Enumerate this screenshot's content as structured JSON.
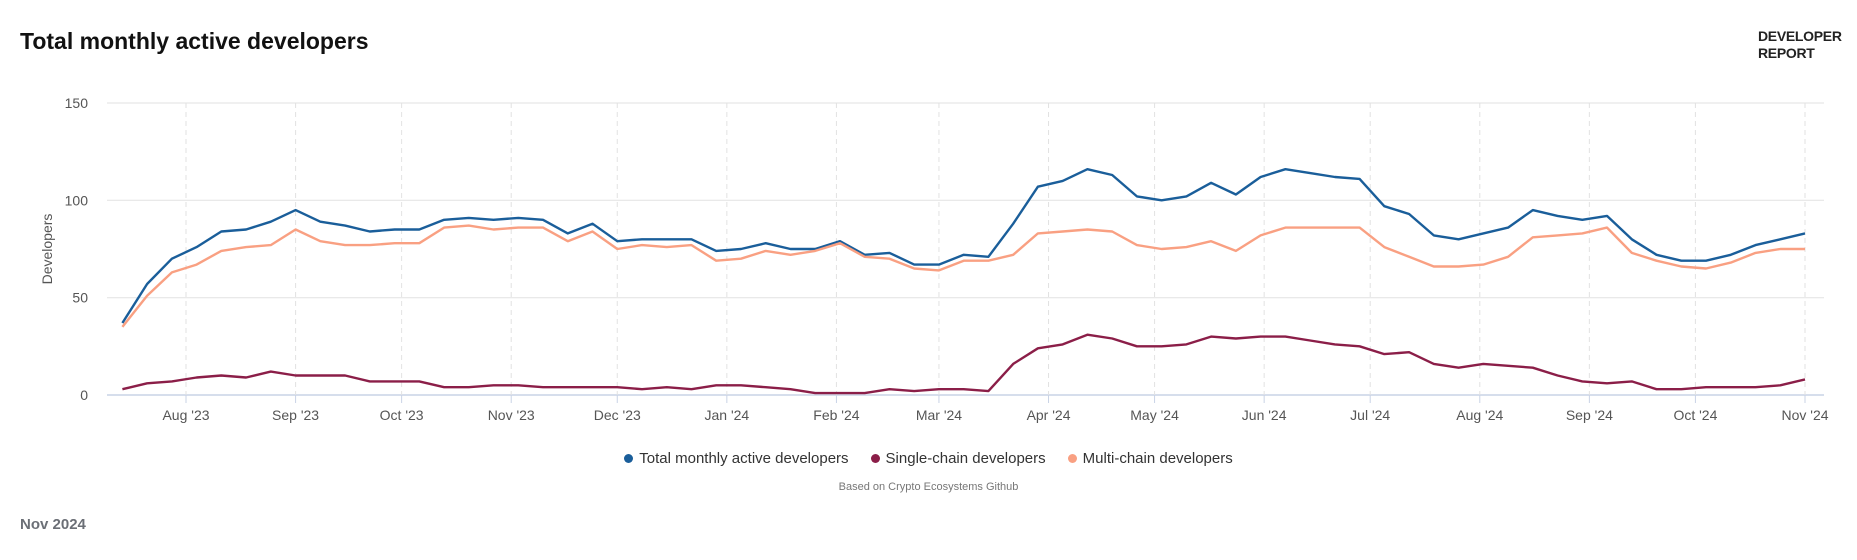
{
  "header": {
    "title": "Total monthly active developers",
    "brand_line1": "DEVELOPER",
    "brand_line2": "REPORT"
  },
  "footer": {
    "source": "Based on Crypto Ecosystems Github",
    "date": "Nov 2024"
  },
  "chart_data": {
    "type": "line",
    "title": "Total monthly active developers",
    "xlabel": "",
    "ylabel": "Developers",
    "ylim": [
      0,
      150
    ],
    "yticks": [
      0,
      50,
      100,
      150
    ],
    "xticks": [
      {
        "date": "2023-08-01",
        "label": "Aug '23"
      },
      {
        "date": "2023-09-01",
        "label": "Sep '23"
      },
      {
        "date": "2023-10-01",
        "label": "Oct '23"
      },
      {
        "date": "2023-11-01",
        "label": "Nov '23"
      },
      {
        "date": "2023-12-01",
        "label": "Dec '23"
      },
      {
        "date": "2024-01-01",
        "label": "Jan '24"
      },
      {
        "date": "2024-02-01",
        "label": "Feb '24"
      },
      {
        "date": "2024-03-01",
        "label": "Mar '24"
      },
      {
        "date": "2024-04-01",
        "label": "Apr '24"
      },
      {
        "date": "2024-05-01",
        "label": "May '24"
      },
      {
        "date": "2024-06-01",
        "label": "Jun '24"
      },
      {
        "date": "2024-07-01",
        "label": "Jul '24"
      },
      {
        "date": "2024-08-01",
        "label": "Aug '24"
      },
      {
        "date": "2024-09-01",
        "label": "Sep '24"
      },
      {
        "date": "2024-10-01",
        "label": "Oct '24"
      },
      {
        "date": "2024-11-01",
        "label": "Nov '24"
      }
    ],
    "grid": true,
    "legend_position": "bottom-center",
    "x": [
      "2023-07-14",
      "2023-07-21",
      "2023-07-28",
      "2023-08-04",
      "2023-08-11",
      "2023-08-18",
      "2023-08-25",
      "2023-09-01",
      "2023-09-08",
      "2023-09-15",
      "2023-09-22",
      "2023-09-29",
      "2023-10-06",
      "2023-10-13",
      "2023-10-20",
      "2023-10-27",
      "2023-11-03",
      "2023-11-10",
      "2023-11-17",
      "2023-11-24",
      "2023-12-01",
      "2023-12-08",
      "2023-12-15",
      "2023-12-22",
      "2023-12-29",
      "2024-01-05",
      "2024-01-12",
      "2024-01-19",
      "2024-01-26",
      "2024-02-02",
      "2024-02-09",
      "2024-02-16",
      "2024-02-23",
      "2024-03-01",
      "2024-03-08",
      "2024-03-15",
      "2024-03-22",
      "2024-03-29",
      "2024-04-05",
      "2024-04-12",
      "2024-04-19",
      "2024-04-26",
      "2024-05-03",
      "2024-05-10",
      "2024-05-17",
      "2024-05-24",
      "2024-05-31",
      "2024-06-07",
      "2024-06-14",
      "2024-06-21",
      "2024-06-28",
      "2024-07-05",
      "2024-07-12",
      "2024-07-19",
      "2024-07-26",
      "2024-08-02",
      "2024-08-09",
      "2024-08-16",
      "2024-08-23",
      "2024-08-30",
      "2024-09-06",
      "2024-09-13",
      "2024-09-20",
      "2024-09-27",
      "2024-10-04",
      "2024-10-11",
      "2024-10-18",
      "2024-10-25",
      "2024-11-01"
    ],
    "series": [
      {
        "name": "Total monthly active developers",
        "color": "#1a5e9a",
        "values": [
          37,
          57,
          70,
          76,
          84,
          85,
          89,
          95,
          89,
          87,
          84,
          85,
          85,
          90,
          91,
          90,
          91,
          90,
          83,
          88,
          79,
          80,
          80,
          80,
          74,
          75,
          78,
          75,
          75,
          79,
          72,
          73,
          67,
          67,
          72,
          71,
          88,
          107,
          110,
          116,
          113,
          102,
          100,
          102,
          109,
          103,
          112,
          116,
          114,
          112,
          111,
          97,
          93,
          82,
          80,
          83,
          86,
          95,
          92,
          90,
          92,
          80,
          72,
          69,
          69,
          72,
          77,
          80,
          83
        ]
      },
      {
        "name": "Single-chain developers",
        "color": "#8b1e48",
        "values": [
          3,
          6,
          7,
          9,
          10,
          9,
          12,
          10,
          10,
          10,
          7,
          7,
          7,
          4,
          4,
          5,
          5,
          4,
          4,
          4,
          4,
          3,
          4,
          3,
          5,
          5,
          4,
          3,
          1,
          1,
          1,
          3,
          2,
          3,
          3,
          2,
          16,
          24,
          26,
          31,
          29,
          25,
          25,
          26,
          30,
          29,
          30,
          30,
          28,
          26,
          25,
          21,
          22,
          16,
          14,
          16,
          15,
          14,
          10,
          7,
          6,
          7,
          3,
          3,
          4,
          4,
          4,
          5,
          8
        ]
      },
      {
        "name": "Multi-chain developers",
        "color": "#f9a082",
        "values": [
          35,
          51,
          63,
          67,
          74,
          76,
          77,
          85,
          79,
          77,
          77,
          78,
          78,
          86,
          87,
          85,
          86,
          86,
          79,
          84,
          75,
          77,
          76,
          77,
          69,
          70,
          74,
          72,
          74,
          78,
          71,
          70,
          65,
          64,
          69,
          69,
          72,
          83,
          84,
          85,
          84,
          77,
          75,
          76,
          79,
          74,
          82,
          86,
          86,
          86,
          86,
          76,
          71,
          66,
          66,
          67,
          71,
          81,
          82,
          83,
          86,
          73,
          69,
          66,
          65,
          68,
          73,
          75,
          75
        ]
      }
    ]
  }
}
